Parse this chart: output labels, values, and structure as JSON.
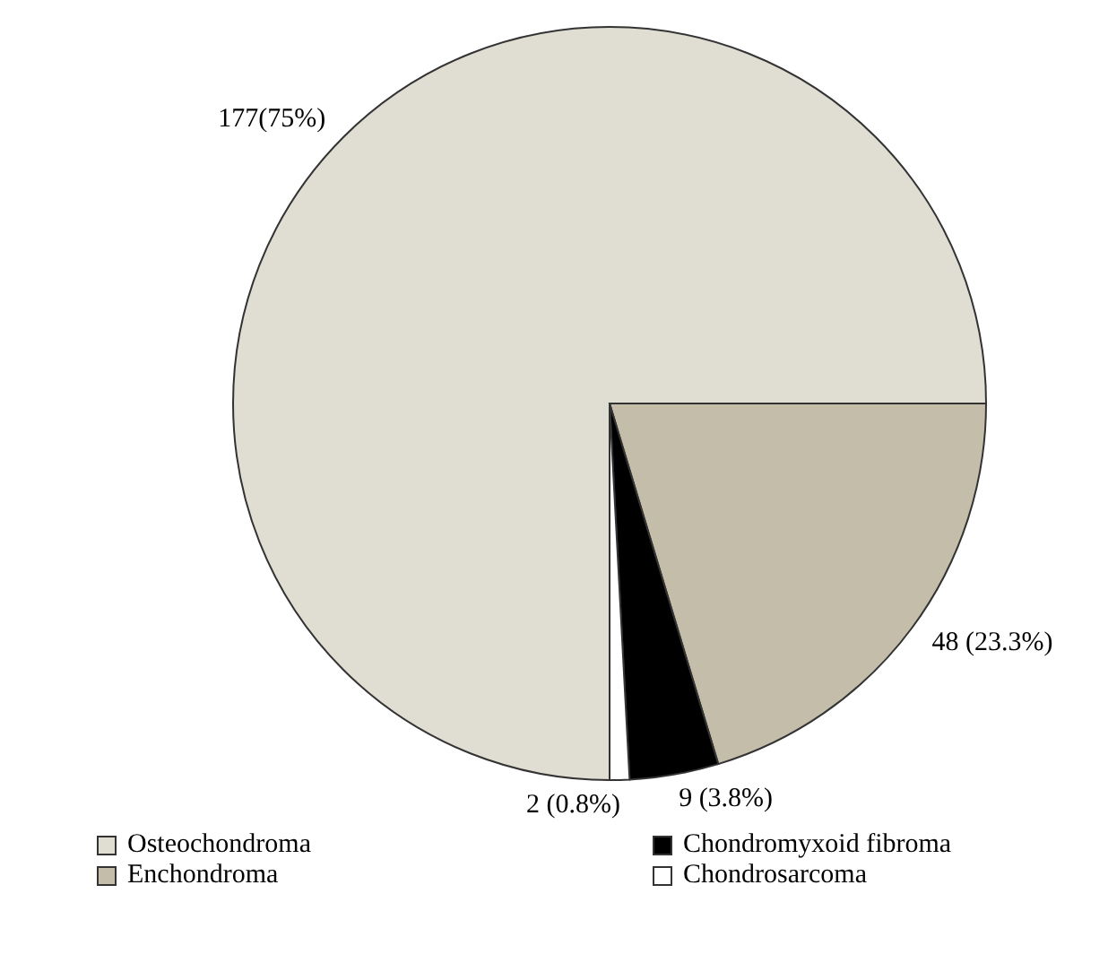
{
  "chart_data": {
    "type": "pie",
    "categories": [
      "Osteochondroma",
      "Enchondroma",
      "Chondromyxoid fibroma",
      "Chondrosarcoma"
    ],
    "values": [
      177,
      48,
      9,
      2
    ],
    "colors": [
      "#e0ddd2",
      "#c4bdaa",
      "#000000",
      "#ffffff"
    ],
    "value_labels": [
      "177(75%)",
      "48 (23.3%)",
      "9 (3.8%)",
      "2 (0.8%)"
    ],
    "legend": "bottom"
  }
}
